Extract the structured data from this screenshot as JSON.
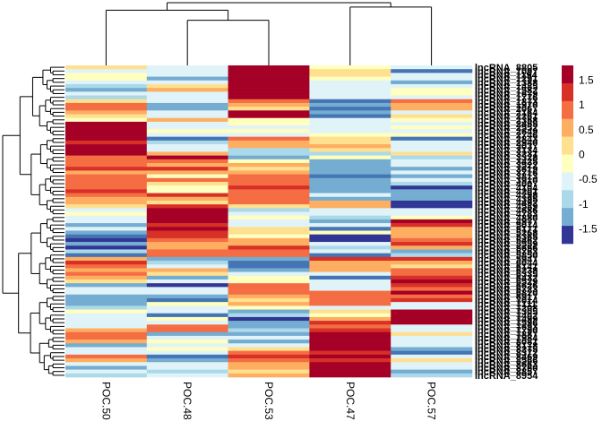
{
  "chart_data": {
    "type": "heatmap",
    "title": "",
    "xlabel": "",
    "ylabel": "",
    "columns": [
      "POC.50",
      "POC.48",
      "POC.53",
      "POC.47",
      "POC.57"
    ],
    "row_label_prefix": "lncRNA",
    "row_labels_note": "Row labels (lncRNA_xxxx) overlap and are illegible; first visible label",
    "first_row_label": "lncRNA_8805",
    "color_scale": {
      "breaks": [
        -1.75,
        -1.5,
        -1.0,
        -0.75,
        -0.5,
        -0.25,
        0,
        0.25,
        0.5,
        0.75,
        1.0,
        1.5,
        1.75
      ],
      "bins": [
        {
          "value": 1.75,
          "color": "#a50026"
        },
        {
          "value": 1.5,
          "color": "#d73027"
        },
        {
          "value": 1.25,
          "color": "#f46d43"
        },
        {
          "value": 0.75,
          "color": "#fdae61"
        },
        {
          "value": 0.5,
          "color": "#fee090"
        },
        {
          "value": 0.0,
          "color": "#ffffbf"
        },
        {
          "value": -0.25,
          "color": "#e0f3f8"
        },
        {
          "value": -0.75,
          "color": "#abd9e9"
        },
        {
          "value": -1.0,
          "color": "#74add1"
        },
        {
          "value": -1.25,
          "color": "#4575b4"
        },
        {
          "value": -1.75,
          "color": "#313695"
        }
      ],
      "legend_ticks": [
        "1.5",
        "1",
        "0.5",
        "0",
        "-0.5",
        "-1",
        "-1.5"
      ],
      "legend_tick_values": [
        1.5,
        1,
        0.5,
        0,
        -0.5,
        -1,
        -1.5
      ],
      "range": [
        -1.8,
        1.8
      ]
    },
    "column_dendrogram": {
      "order": [
        "POC.50",
        "POC.48",
        "POC.53",
        "POC.47",
        "POC.57"
      ],
      "merges": [
        {
          "a": "POC.48",
          "b": "POC.53",
          "height": 0.72
        },
        {
          "a": "POC.50",
          "b": "(POC.48,POC.53)",
          "height": 0.88
        },
        {
          "a": "POC.47",
          "b": "POC.57",
          "height": 0.93
        },
        {
          "a": "(POC.50,(POC.48,POC.53))",
          "b": "(POC.47,POC.57)",
          "height": 1.0
        }
      ]
    },
    "rows": [
      [
        0.4,
        -0.6,
        1.8,
        0.1,
        -0.6
      ],
      [
        -0.4,
        -0.6,
        1.8,
        0.3,
        -1.2
      ],
      [
        -0.2,
        -0.6,
        1.8,
        0.5,
        -0.6
      ],
      [
        0.1,
        -1.0,
        1.8,
        -0.2,
        -0.4
      ],
      [
        -0.3,
        -0.5,
        1.8,
        -0.3,
        -1.0
      ],
      [
        -0.9,
        0.4,
        1.8,
        -0.6,
        -0.3
      ],
      [
        -1.0,
        0.6,
        1.8,
        -0.4,
        0.1
      ],
      [
        -0.6,
        -0.5,
        1.8,
        -0.5,
        -0.2
      ],
      [
        -0.9,
        -0.3,
        1.8,
        -0.6,
        -0.6
      ],
      [
        0.3,
        -0.6,
        1.0,
        -1.4,
        1.3
      ],
      [
        1.3,
        -1.0,
        0.8,
        -1.0,
        0.9
      ],
      [
        1.1,
        -1.0,
        0.5,
        -1.3,
        0.6
      ],
      [
        0.6,
        -0.3,
        1.8,
        -1.0,
        -0.3
      ],
      [
        0.4,
        -0.6,
        1.7,
        -1.5,
        0.4
      ],
      [
        0.2,
        0.6,
        -0.2,
        -0.3,
        0.1
      ],
      [
        1.8,
        -0.5,
        0.0,
        -0.6,
        -0.4
      ],
      [
        1.8,
        -0.3,
        -0.6,
        -0.3,
        -0.2
      ],
      [
        1.8,
        -0.2,
        -0.2,
        -0.5,
        -0.6
      ],
      [
        1.8,
        -0.6,
        -0.4,
        -0.2,
        0.0
      ],
      [
        1.8,
        -1.2,
        1.0,
        0.4,
        -1.3
      ],
      [
        1.5,
        -0.8,
        0.8,
        0.3,
        -0.6
      ],
      [
        1.6,
        -0.6,
        0.6,
        0.9,
        -0.5
      ],
      [
        1.8,
        -0.6,
        -0.7,
        0.5,
        -0.3
      ],
      [
        1.6,
        0.9,
        -0.8,
        -0.7,
        0.3
      ],
      [
        1.2,
        1.6,
        -1.0,
        0.1,
        -0.9
      ],
      [
        1.3,
        1.3,
        -0.2,
        -1.0,
        -0.6
      ],
      [
        1.2,
        0.8,
        0.6,
        -1.0,
        -0.5
      ],
      [
        1.5,
        1.5,
        0.5,
        -1.0,
        -1.0
      ],
      [
        0.9,
        0.7,
        0.6,
        -1.0,
        -0.6
      ],
      [
        1.3,
        0.2,
        1.3,
        -1.5,
        -1.0
      ],
      [
        1.1,
        1.0,
        1.1,
        -1.0,
        -0.6
      ],
      [
        1.3,
        0.5,
        1.2,
        -1.0,
        -0.8
      ],
      [
        1.3,
        0.1,
        1.5,
        -1.0,
        -1.6
      ],
      [
        1.5,
        0.2,
        1.3,
        -1.0,
        -1.0
      ],
      [
        1.0,
        1.4,
        1.3,
        -0.3,
        -1.0
      ],
      [
        0.9,
        0.6,
        1.2,
        -1.0,
        -1.0
      ],
      [
        0.8,
        0.5,
        1.0,
        0.7,
        -1.8
      ],
      [
        0.5,
        1.5,
        0.3,
        0.8,
        -1.6
      ],
      [
        -0.3,
        1.8,
        -0.8,
        -0.6,
        -0.5
      ],
      [
        -0.2,
        1.8,
        -0.3,
        -0.5,
        -0.3
      ],
      [
        -0.3,
        1.8,
        0.1,
        -0.7,
        0.2
      ],
      [
        -0.6,
        1.8,
        -0.6,
        -1.0,
        1.7
      ],
      [
        -1.0,
        1.5,
        -0.4,
        -0.6,
        1.4
      ],
      [
        -0.5,
        1.7,
        0.3,
        -1.3,
        0.9
      ],
      [
        -1.0,
        1.5,
        0.5,
        -0.2,
        0.7
      ],
      [
        -1.2,
        1.4,
        0.0,
        -1.8,
        0.7
      ],
      [
        -1.8,
        1.0,
        0.6,
        -1.8,
        1.2
      ],
      [
        -1.0,
        0.8,
        0.8,
        -0.4,
        1.4
      ],
      [
        -1.8,
        0.8,
        1.5,
        -0.7,
        0.9
      ],
      [
        -0.7,
        1.2,
        1.2,
        -0.6,
        -1.0
      ],
      [
        -1.2,
        1.0,
        1.0,
        -1.2,
        -0.9
      ],
      [
        0.7,
        -1.0,
        -1.0,
        1.5,
        1.5
      ],
      [
        1.5,
        -0.9,
        -1.2,
        0.8,
        0.7
      ],
      [
        1.2,
        -0.6,
        -1.4,
        0.7,
        0.5
      ],
      [
        0.8,
        0.6,
        -1.0,
        0.8,
        1.0
      ],
      [
        1.0,
        0.3,
        -0.3,
        -0.5,
        1.3
      ],
      [
        0.6,
        -1.0,
        0.0,
        -1.4,
        1.5
      ],
      [
        0.5,
        -0.6,
        0.1,
        -0.6,
        1.8
      ],
      [
        -1.0,
        -1.7,
        1.2,
        -0.6,
        1.4
      ],
      [
        -0.6,
        -0.5,
        1.0,
        -0.6,
        1.2
      ],
      [
        -0.6,
        -0.6,
        1.3,
        1.2,
        1.6
      ],
      [
        -1.0,
        -1.0,
        0.6,
        1.0,
        1.2
      ],
      [
        -1.0,
        -1.5,
        0.5,
        1.0,
        1.5
      ],
      [
        -1.0,
        0.0,
        0.7,
        1.3,
        -0.6
      ],
      [
        -0.7,
        -0.3,
        0.2,
        -0.6,
        -0.5
      ],
      [
        0.2,
        -0.4,
        -1.0,
        0.5,
        1.8
      ],
      [
        -0.5,
        -1.2,
        -0.8,
        0.2,
        1.8
      ],
      [
        -0.3,
        0.0,
        -1.7,
        0.9,
        1.8
      ],
      [
        -0.5,
        -0.6,
        -1.0,
        1.5,
        1.6
      ],
      [
        -0.3,
        1.0,
        -1.0,
        1.0,
        -0.6
      ],
      [
        0.9,
        1.3,
        -0.7,
        1.5,
        -0.3
      ],
      [
        1.2,
        -1.0,
        -1.0,
        1.8,
        0.3
      ],
      [
        1.3,
        -0.5,
        -0.5,
        1.8,
        -0.6
      ],
      [
        0.6,
        0.1,
        -1.0,
        1.8,
        -0.3
      ],
      [
        -1.0,
        -0.6,
        -0.3,
        1.8,
        -0.6
      ],
      [
        -0.6,
        0.0,
        0.3,
        1.6,
        -1.0
      ],
      [
        -0.4,
        -0.6,
        1.2,
        1.4,
        -1.3
      ],
      [
        1.3,
        -1.2,
        1.5,
        1.8,
        -0.3
      ],
      [
        0.9,
        -1.0,
        1.0,
        1.4,
        0.3
      ],
      [
        -0.6,
        -0.6,
        0.9,
        1.8,
        -0.6
      ],
      [
        -1.0,
        -0.3,
        0.8,
        1.8,
        -0.4
      ],
      [
        -0.6,
        -0.8,
        0.5,
        1.8,
        -1.0
      ],
      [
        -0.7,
        -0.6,
        0.6,
        1.8,
        -0.7
      ]
    ]
  }
}
